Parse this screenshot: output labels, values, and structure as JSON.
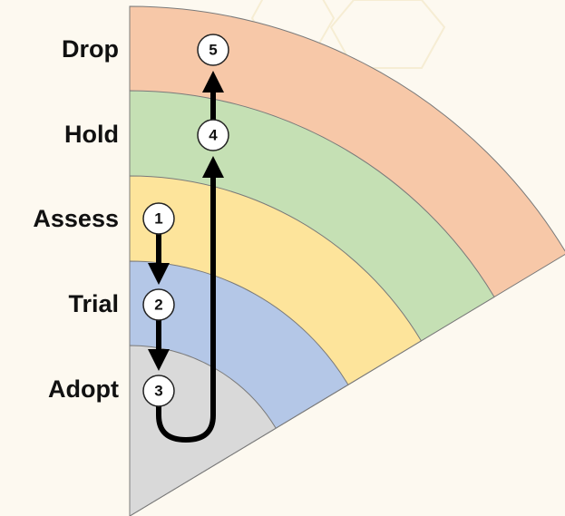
{
  "rings": [
    {
      "label": "Drop"
    },
    {
      "label": "Hold"
    },
    {
      "label": "Assess"
    },
    {
      "label": "Trial"
    },
    {
      "label": "Adopt"
    }
  ],
  "nodes": [
    {
      "label": "1"
    },
    {
      "label": "2"
    },
    {
      "label": "3"
    },
    {
      "label": "4"
    },
    {
      "label": "5"
    }
  ]
}
